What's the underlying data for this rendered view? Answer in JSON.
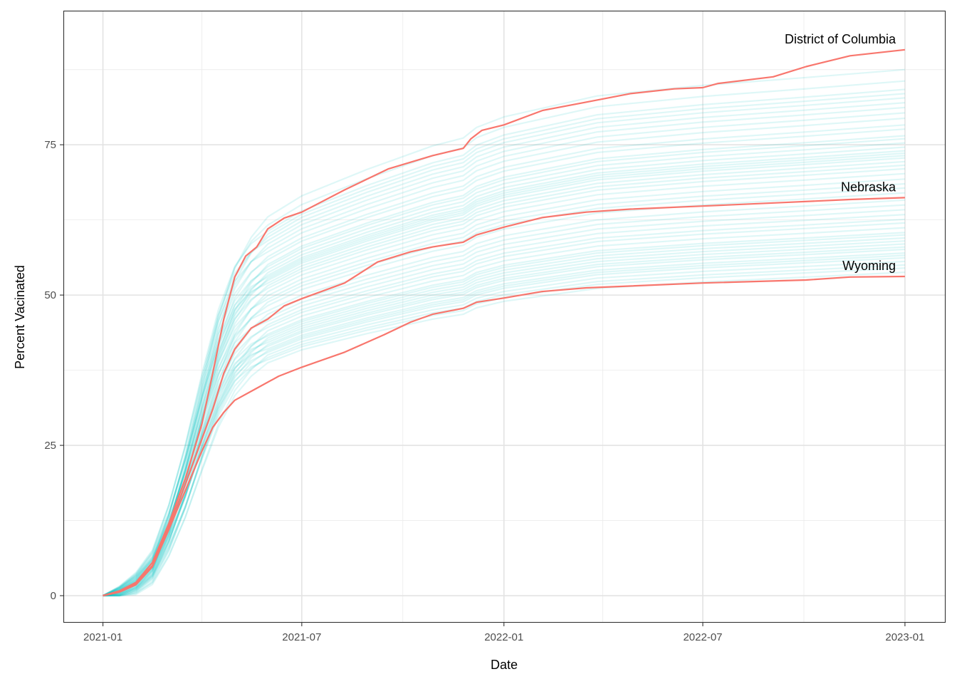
{
  "chart_data": {
    "type": "line",
    "title": "",
    "xlabel": "Date",
    "ylabel": "Percent Vacinated",
    "x_origin": "2021-01-01",
    "x_units": "days since 2021-01-01",
    "xlim": [
      -36,
      767
    ],
    "ylim": [
      -4.5,
      97.3
    ],
    "grid": true,
    "legend": "none",
    "x_ticks": [
      {
        "label": "2021-01",
        "day": 0
      },
      {
        "label": "2021-07",
        "day": 181
      },
      {
        "label": "2022-01",
        "day": 365
      },
      {
        "label": "2022-07",
        "day": 546
      },
      {
        "label": "2023-01",
        "day": 730
      }
    ],
    "x_minor_days": [
      90,
      273,
      455,
      638
    ],
    "y_ticks": [
      0,
      25,
      50,
      75
    ],
    "y_minor": [
      12.5,
      37.5,
      62.5,
      87.5
    ],
    "highlight_color": "#F8766D",
    "background_color": "#00BFC4",
    "highlighted_series": [
      {
        "name": "District of Columbia",
        "label": "District of Columbia",
        "points": [
          [
            0,
            0
          ],
          [
            15,
            0.8
          ],
          [
            30,
            2.2
          ],
          [
            45,
            5.5
          ],
          [
            60,
            12
          ],
          [
            75,
            19.5
          ],
          [
            90,
            28.5
          ],
          [
            100,
            37
          ],
          [
            110,
            46
          ],
          [
            120,
            53
          ],
          [
            130,
            56.5
          ],
          [
            140,
            58
          ],
          [
            150,
            61
          ],
          [
            165,
            62.8
          ],
          [
            181,
            63.8
          ],
          [
            220,
            67.5
          ],
          [
            260,
            71
          ],
          [
            300,
            73.2
          ],
          [
            328,
            74.4
          ],
          [
            335,
            76
          ],
          [
            345,
            77.4
          ],
          [
            365,
            78.3
          ],
          [
            400,
            80.7
          ],
          [
            440,
            82.1
          ],
          [
            480,
            83.5
          ],
          [
            520,
            84.3
          ],
          [
            546,
            84.5
          ],
          [
            560,
            85.2
          ],
          [
            610,
            86.3
          ],
          [
            640,
            88
          ],
          [
            680,
            89.8
          ],
          [
            730,
            90.8
          ]
        ]
      },
      {
        "name": "Nebraska",
        "label": "Nebraska",
        "points": [
          [
            0,
            0
          ],
          [
            15,
            0.7
          ],
          [
            30,
            2
          ],
          [
            45,
            5
          ],
          [
            60,
            11.5
          ],
          [
            75,
            18.5
          ],
          [
            90,
            26
          ],
          [
            100,
            31
          ],
          [
            110,
            37
          ],
          [
            120,
            41
          ],
          [
            135,
            44.5
          ],
          [
            150,
            46
          ],
          [
            165,
            48.2
          ],
          [
            181,
            49.4
          ],
          [
            220,
            52
          ],
          [
            250,
            55.5
          ],
          [
            280,
            57.2
          ],
          [
            300,
            58
          ],
          [
            328,
            58.8
          ],
          [
            340,
            60
          ],
          [
            365,
            61.3
          ],
          [
            400,
            62.9
          ],
          [
            440,
            63.8
          ],
          [
            480,
            64.3
          ],
          [
            546,
            64.8
          ],
          [
            620,
            65.4
          ],
          [
            680,
            65.9
          ],
          [
            730,
            66.2
          ]
        ]
      },
      {
        "name": "Wyoming",
        "label": "Wyoming",
        "points": [
          [
            0,
            0
          ],
          [
            15,
            0.6
          ],
          [
            30,
            1.8
          ],
          [
            45,
            4.8
          ],
          [
            60,
            11
          ],
          [
            75,
            17.5
          ],
          [
            90,
            24
          ],
          [
            100,
            28
          ],
          [
            110,
            30.5
          ],
          [
            120,
            32.5
          ],
          [
            140,
            34.5
          ],
          [
            160,
            36.5
          ],
          [
            181,
            38
          ],
          [
            220,
            40.5
          ],
          [
            256,
            43.4
          ],
          [
            280,
            45.5
          ],
          [
            300,
            46.8
          ],
          [
            328,
            47.8
          ],
          [
            340,
            48.8
          ],
          [
            365,
            49.5
          ],
          [
            400,
            50.6
          ],
          [
            440,
            51.2
          ],
          [
            546,
            52
          ],
          [
            640,
            52.5
          ],
          [
            680,
            53
          ],
          [
            730,
            53.1
          ]
        ]
      }
    ],
    "background_series": {
      "count": 48,
      "shape_days": [
        0,
        15,
        30,
        45,
        60,
        75,
        90,
        105,
        120,
        135,
        150,
        181,
        240,
        300,
        328,
        340,
        365,
        450,
        546,
        640,
        730
      ],
      "shape_fraction": [
        0,
        0.01,
        0.03,
        0.07,
        0.16,
        0.28,
        0.42,
        0.55,
        0.64,
        0.69,
        0.72,
        0.76,
        0.81,
        0.855,
        0.87,
        0.89,
        0.91,
        0.95,
        0.97,
        0.985,
        1.0
      ],
      "final_values": [
        87.5,
        85.6,
        84.2,
        83.5,
        82.8,
        82,
        81.2,
        80.3,
        79.4,
        78.3,
        77.6,
        76.5,
        76,
        75.3,
        74.6,
        74,
        73.6,
        73.2,
        72.8,
        72.2,
        71.6,
        71,
        70.2,
        69.3,
        68.5,
        67.8,
        67,
        65.8,
        65,
        64.2,
        63.4,
        62.6,
        62,
        61.2,
        60.4,
        60,
        59.5,
        59,
        58.5,
        58,
        57.6,
        57,
        56.6,
        56.2,
        55.6,
        55,
        54.5,
        53.8
      ]
    }
  }
}
